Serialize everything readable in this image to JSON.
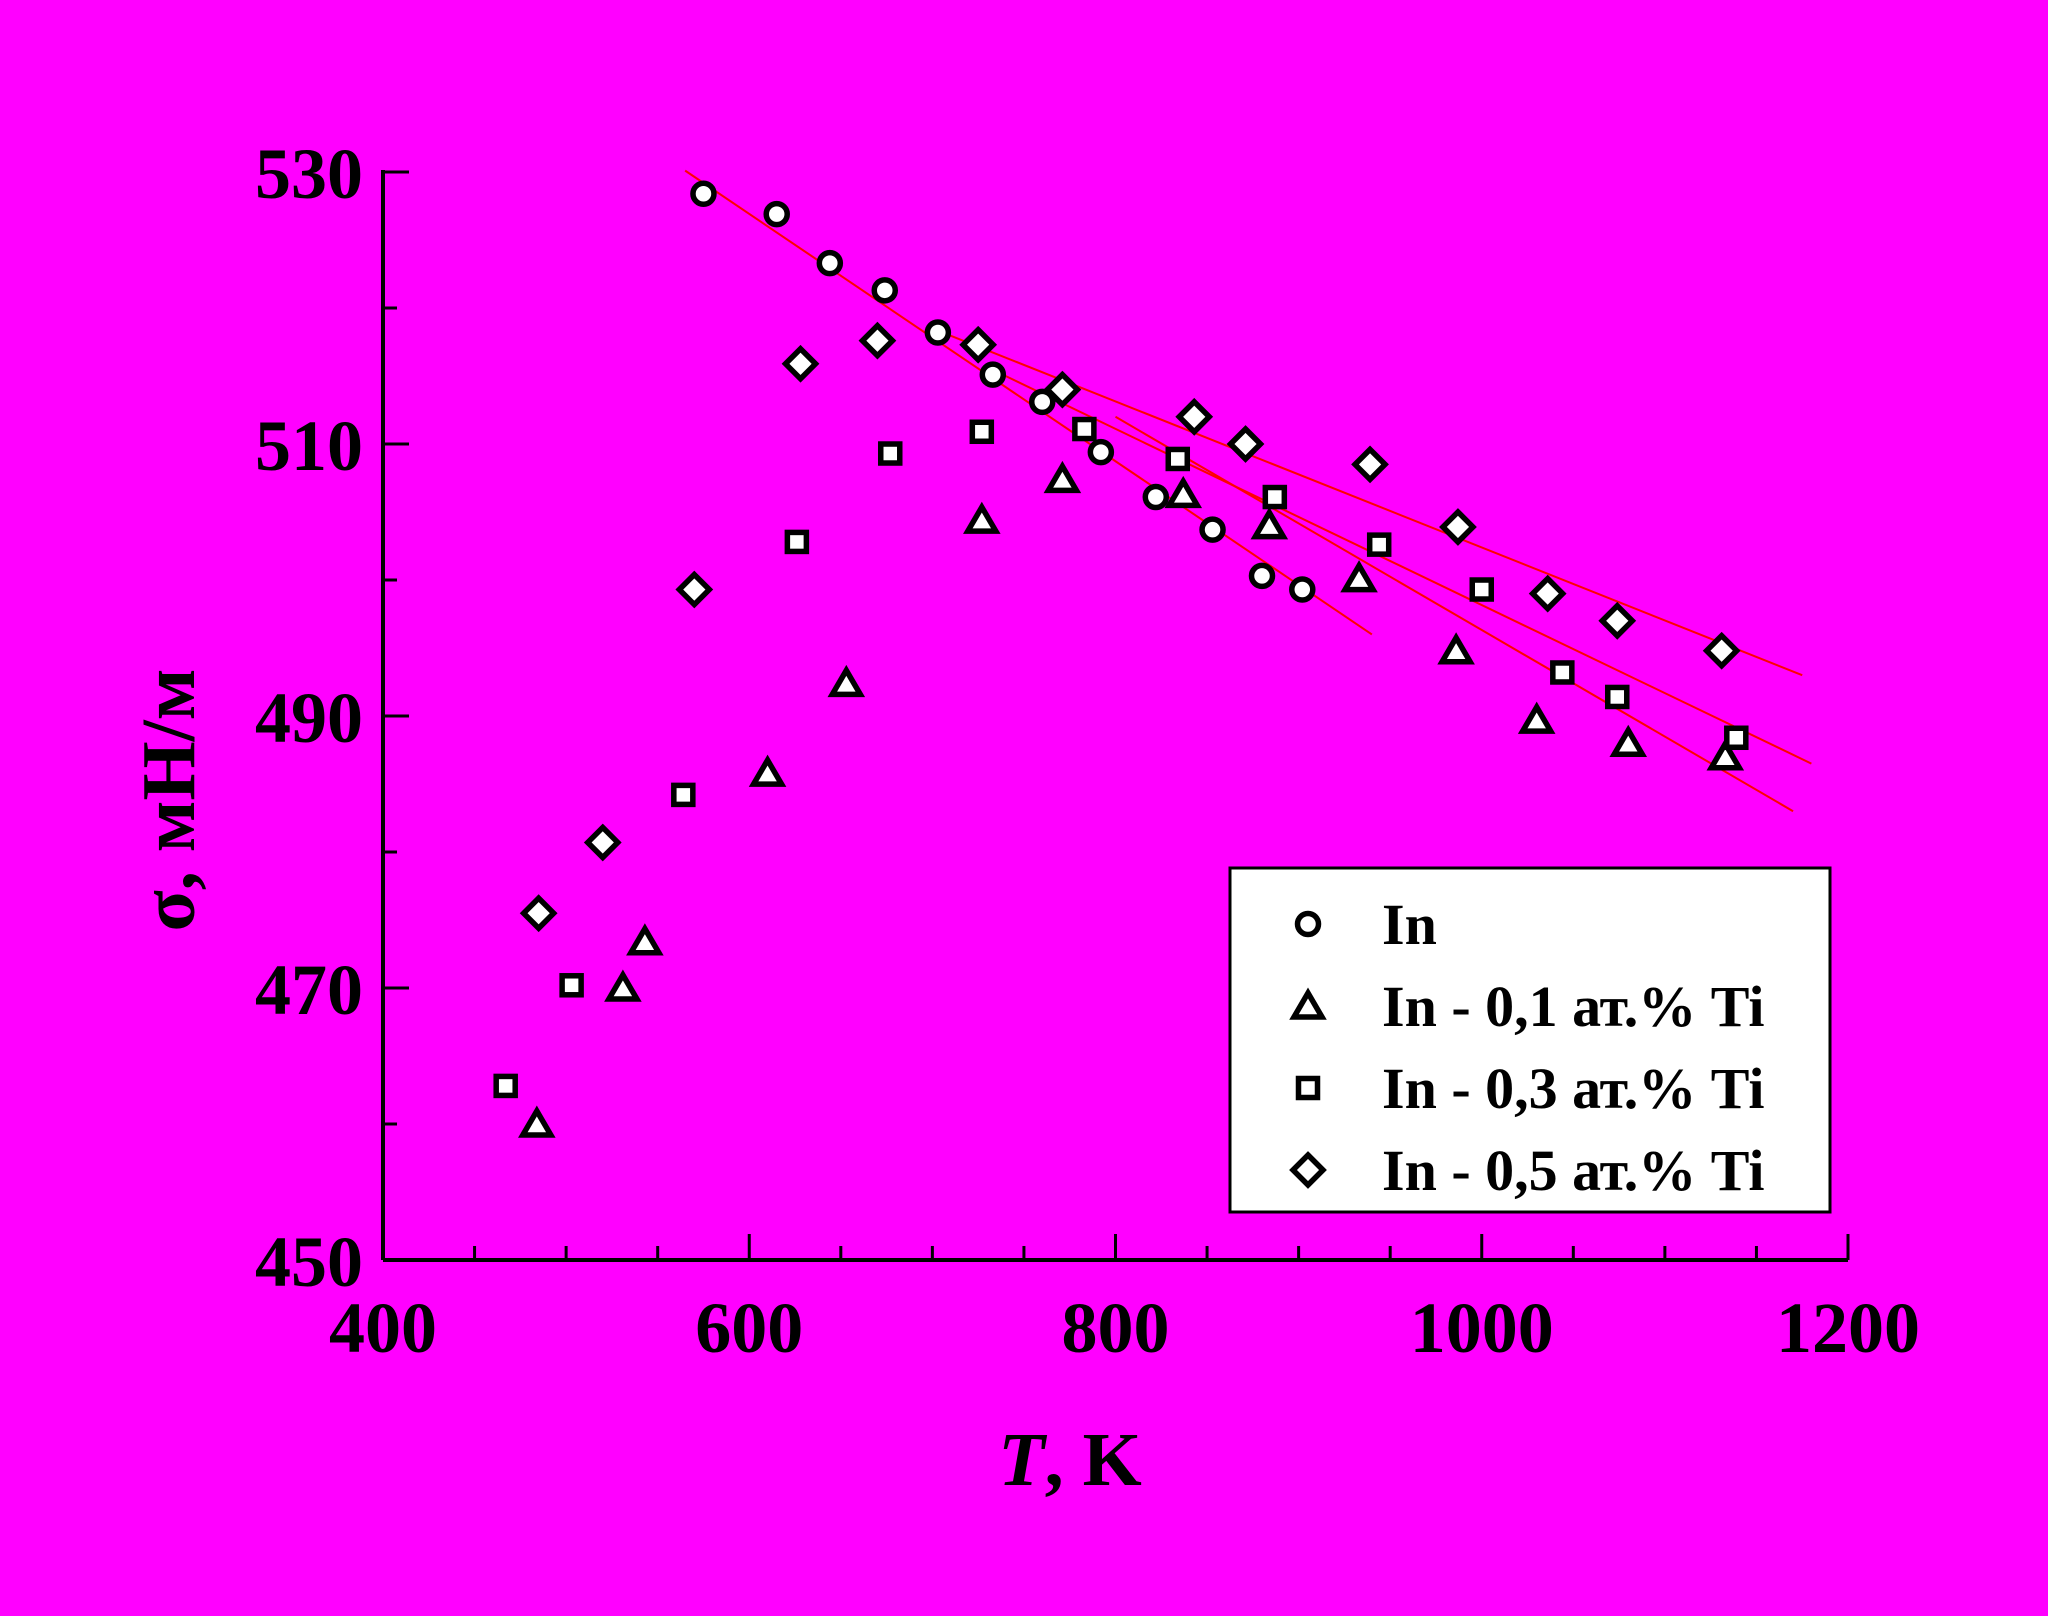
{
  "colors": {
    "background": "#FF00FF",
    "fit_line": "#FF0000",
    "marker": "#000000"
  },
  "chart_data": {
    "type": "scatter",
    "xlabel_italic": "T",
    "xlabel_rest": ", K",
    "ylabel": "σ, мН/м",
    "xlim": [
      400,
      1200
    ],
    "ylim": [
      450,
      530
    ],
    "xticks": [
      400,
      600,
      800,
      1000,
      1200
    ],
    "yticks": [
      450,
      470,
      490,
      510,
      530
    ],
    "x_minor_step": 50,
    "y_minor_step": 10,
    "legend_position": "lower-right",
    "series": [
      {
        "name": "In",
        "marker": "circle",
        "x": [
          575,
          615,
          644,
          674,
          703,
          733,
          760,
          792,
          822,
          853,
          880,
          902
        ],
        "y": [
          528.4,
          526.9,
          523.3,
          521.3,
          518.2,
          515.1,
          513.1,
          509.4,
          506.1,
          503.7,
          500.3,
          499.3
        ],
        "fit": [
          [
            565,
            530.1
          ],
          [
            940,
            496.0
          ]
        ]
      },
      {
        "name": "In - 0,1 ат.% Ti",
        "marker": "triangle",
        "x": [
          484,
          531,
          543,
          610,
          653,
          727,
          771,
          837,
          884,
          933,
          986,
          1030,
          1080,
          1133
        ],
        "y": [
          460.0,
          470.0,
          473.4,
          485.8,
          492.4,
          504.4,
          507.4,
          506.3,
          504.0,
          500.1,
          494.8,
          489.7,
          488.0,
          487.0
        ],
        "fit": [
          [
            800,
            512.0
          ],
          [
            1170,
            483.0
          ]
        ]
      },
      {
        "name": "In - 0,3 ат.% Ti",
        "marker": "square",
        "x": [
          467,
          503,
          564,
          626,
          677,
          727,
          783,
          834,
          887,
          944,
          1000,
          1044,
          1074,
          1139
        ],
        "y": [
          462.8,
          470.2,
          484.2,
          502.8,
          509.3,
          510.9,
          511.1,
          508.9,
          506.1,
          502.6,
          499.3,
          493.2,
          491.4,
          488.4
        ],
        "fit": [
          [
            740,
            515.0
          ],
          [
            1180,
            486.5
          ]
        ]
      },
      {
        "name": "In - 0,5 ат.% Ti",
        "marker": "diamond",
        "x": [
          485,
          520,
          570,
          628,
          670,
          725,
          771,
          843,
          871,
          939,
          987,
          1036,
          1074,
          1131
        ],
        "y": [
          475.5,
          480.7,
          499.3,
          515.9,
          517.6,
          517.3,
          514.0,
          512.0,
          510.0,
          508.5,
          503.9,
          499.0,
          497.0,
          494.8
        ],
        "fit": [
          [
            700,
            518.5
          ],
          [
            1175,
            493.0
          ]
        ]
      }
    ]
  }
}
